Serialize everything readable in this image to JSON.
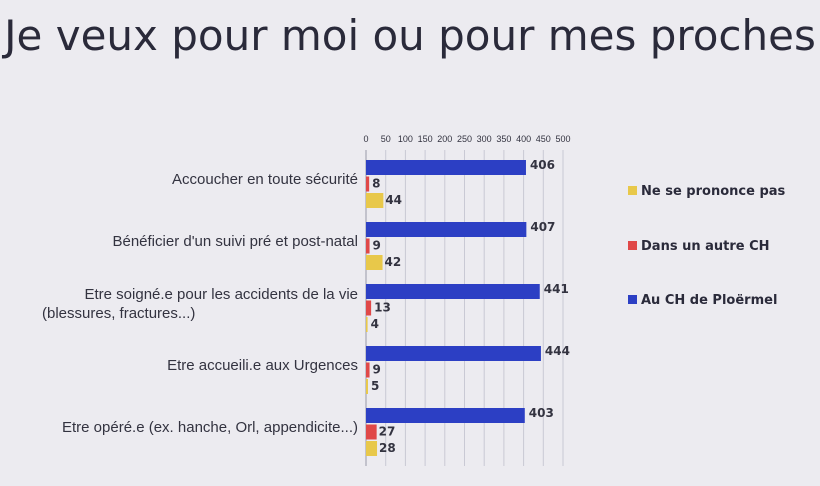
{
  "title": "Je veux pour moi ou pour mes proches",
  "chart_data": {
    "type": "bar",
    "orientation": "horizontal",
    "title": "Je veux pour moi ou pour mes proches",
    "categories": [
      [
        "Accoucher en toute sécurité"
      ],
      [
        "Bénéficier d'un suivi pré et post-natal"
      ],
      [
        "Etre soigné.e pour les accidents de la vie",
        "(blessures, fractures...)"
      ],
      [
        "Etre accueili.e aux Urgences"
      ],
      [
        "Etre opéré.e (ex. hanche, Orl, appendicite...)"
      ]
    ],
    "series": [
      {
        "name": "Au CH de Ploërmel",
        "color": "#2c3fc4",
        "values": [
          406,
          407,
          441,
          444,
          403
        ]
      },
      {
        "name": "Dans un autre CH",
        "color": "#e04848",
        "values": [
          8,
          9,
          13,
          9,
          27
        ]
      },
      {
        "name": "Ne se prononce pas",
        "color": "#e8c84a",
        "values": [
          44,
          42,
          4,
          5,
          28
        ]
      }
    ],
    "xlim": [
      0,
      500
    ],
    "xticks": [
      0,
      50,
      100,
      150,
      200,
      250,
      300,
      350,
      400,
      450,
      500
    ],
    "xaxis_position": "top",
    "legend_position": "right",
    "legend_order": [
      "Ne se prononce pas",
      "Dans un autre CH",
      "Au CH de Ploërmel"
    ],
    "grid": true
  }
}
